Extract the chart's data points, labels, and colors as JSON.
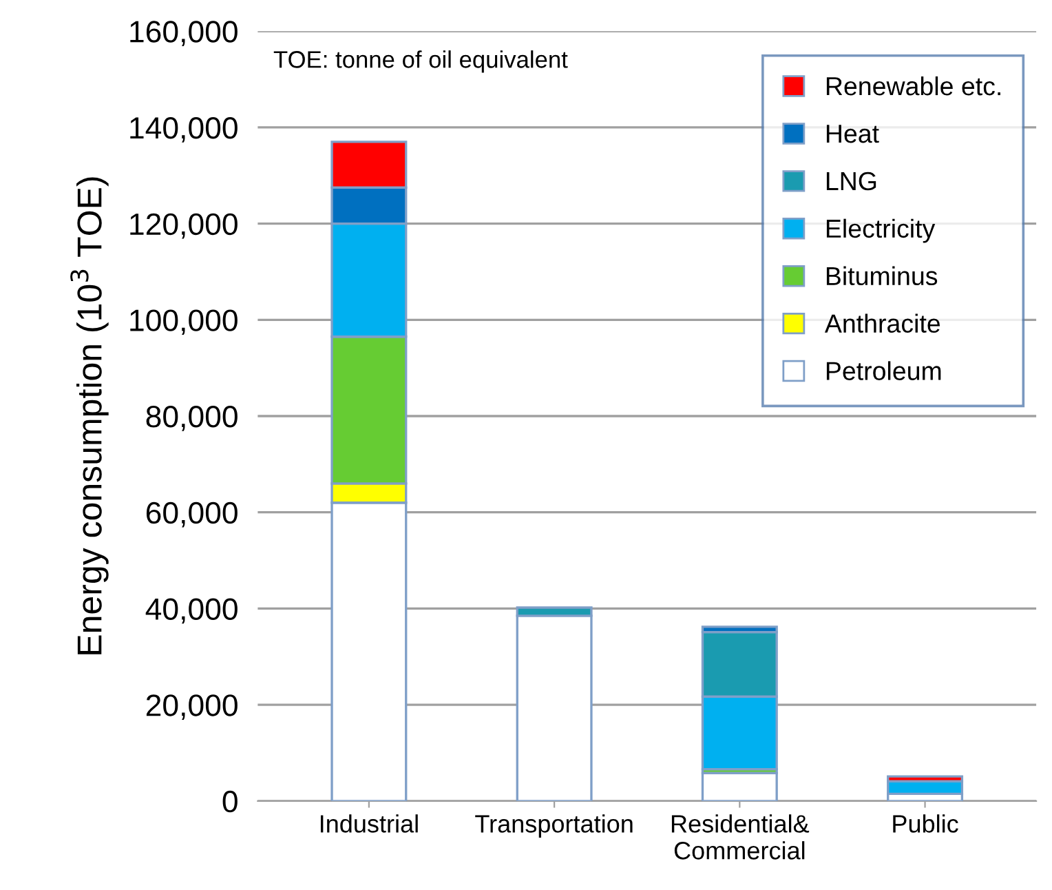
{
  "chart_data": {
    "type": "bar",
    "stacked": true,
    "ylabel": "Energy consumption (10$^{3}$ TOE)",
    "annotations": [
      "TOE: tonne of oil equivalent"
    ],
    "categories": [
      "Industrial",
      "Transportation",
      "Residential&\nCommercial",
      "Public"
    ],
    "ylim": [
      0,
      160000
    ],
    "yticks": [
      {
        "value": 0,
        "label": "0"
      },
      {
        "value": 20000,
        "label": "20,000"
      },
      {
        "value": 40000,
        "label": "40,000"
      },
      {
        "value": 60000,
        "label": "60,000"
      },
      {
        "value": 80000,
        "label": "80,000"
      },
      {
        "value": 100000,
        "label": "100,000"
      },
      {
        "value": 120000,
        "label": "120,000"
      },
      {
        "value": 140000,
        "label": "140,000"
      },
      {
        "value": 160000,
        "label": "160,000"
      }
    ],
    "grid": "y",
    "legend": "top right",
    "series": [
      {
        "name": "Petroleum",
        "color": "#ffffff",
        "values": [
          62000,
          38500,
          5800,
          1500
        ]
      },
      {
        "name": "Anthracite",
        "color": "#ffff00",
        "values": [
          4000,
          null,
          null,
          null
        ]
      },
      {
        "name": "Bituminus",
        "color": "#66cc33",
        "values": [
          30500,
          null,
          800,
          null
        ]
      },
      {
        "name": "Electricity",
        "color": "#00b0f0",
        "values": [
          23500,
          null,
          15100,
          2600
        ]
      },
      {
        "name": "LNG",
        "color": "#1a9bb0",
        "values": [
          null,
          1700,
          13400,
          null
        ]
      },
      {
        "name": "Heat",
        "color": "#0070c0",
        "values": [
          7500,
          null,
          1100,
          null
        ]
      },
      {
        "name": "Renewable etc.",
        "color": "#ff0000",
        "values": [
          9500,
          null,
          null,
          1000
        ]
      }
    ]
  }
}
